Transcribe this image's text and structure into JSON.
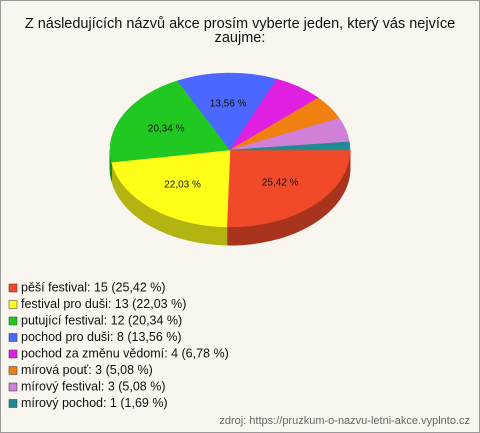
{
  "chart_data": {
    "type": "pie",
    "title": "Z následujících názvů akce prosím vyberte jeden, který vás nejvíce zaujme:",
    "categories": [
      "pěší festival",
      "festival pro duši",
      "putující festival",
      "pochod pro duši",
      "pochod za změnu vědomí",
      "mírová pouť",
      "mírový festival",
      "mírový pochod"
    ],
    "legend_labels": [
      "pěší festival: 15 (25,42 %)",
      "festival pro duši: 13 (22,03 %)",
      "putující festival: 12 (20,34 %)",
      "pochod pro duši: 8 (13,56 %)",
      "pochod za změnu vědomí: 4 (6,78 %)",
      "mírová pouť: 3 (5,08 %)",
      "mírový festival: 3 (5,08 %)",
      "mírový pochod: 1 (1,69 %)"
    ],
    "values": [
      25.42,
      22.03,
      20.34,
      13.56,
      6.78,
      5.08,
      5.08,
      1.69
    ],
    "value_labels": [
      "25,42 %",
      "22,03 %",
      "20,34 %",
      "13,56 %",
      null,
      null,
      null,
      null
    ],
    "colors": [
      "#f04a2a",
      "#ffff1a",
      "#22c822",
      "#4a68ff",
      "#e020e0",
      "#f08010",
      "#d080d8",
      "#208a90"
    ],
    "source": "zdroj: https://pruzkum-o-nazvu-letni-akce.vyplnto.cz"
  }
}
